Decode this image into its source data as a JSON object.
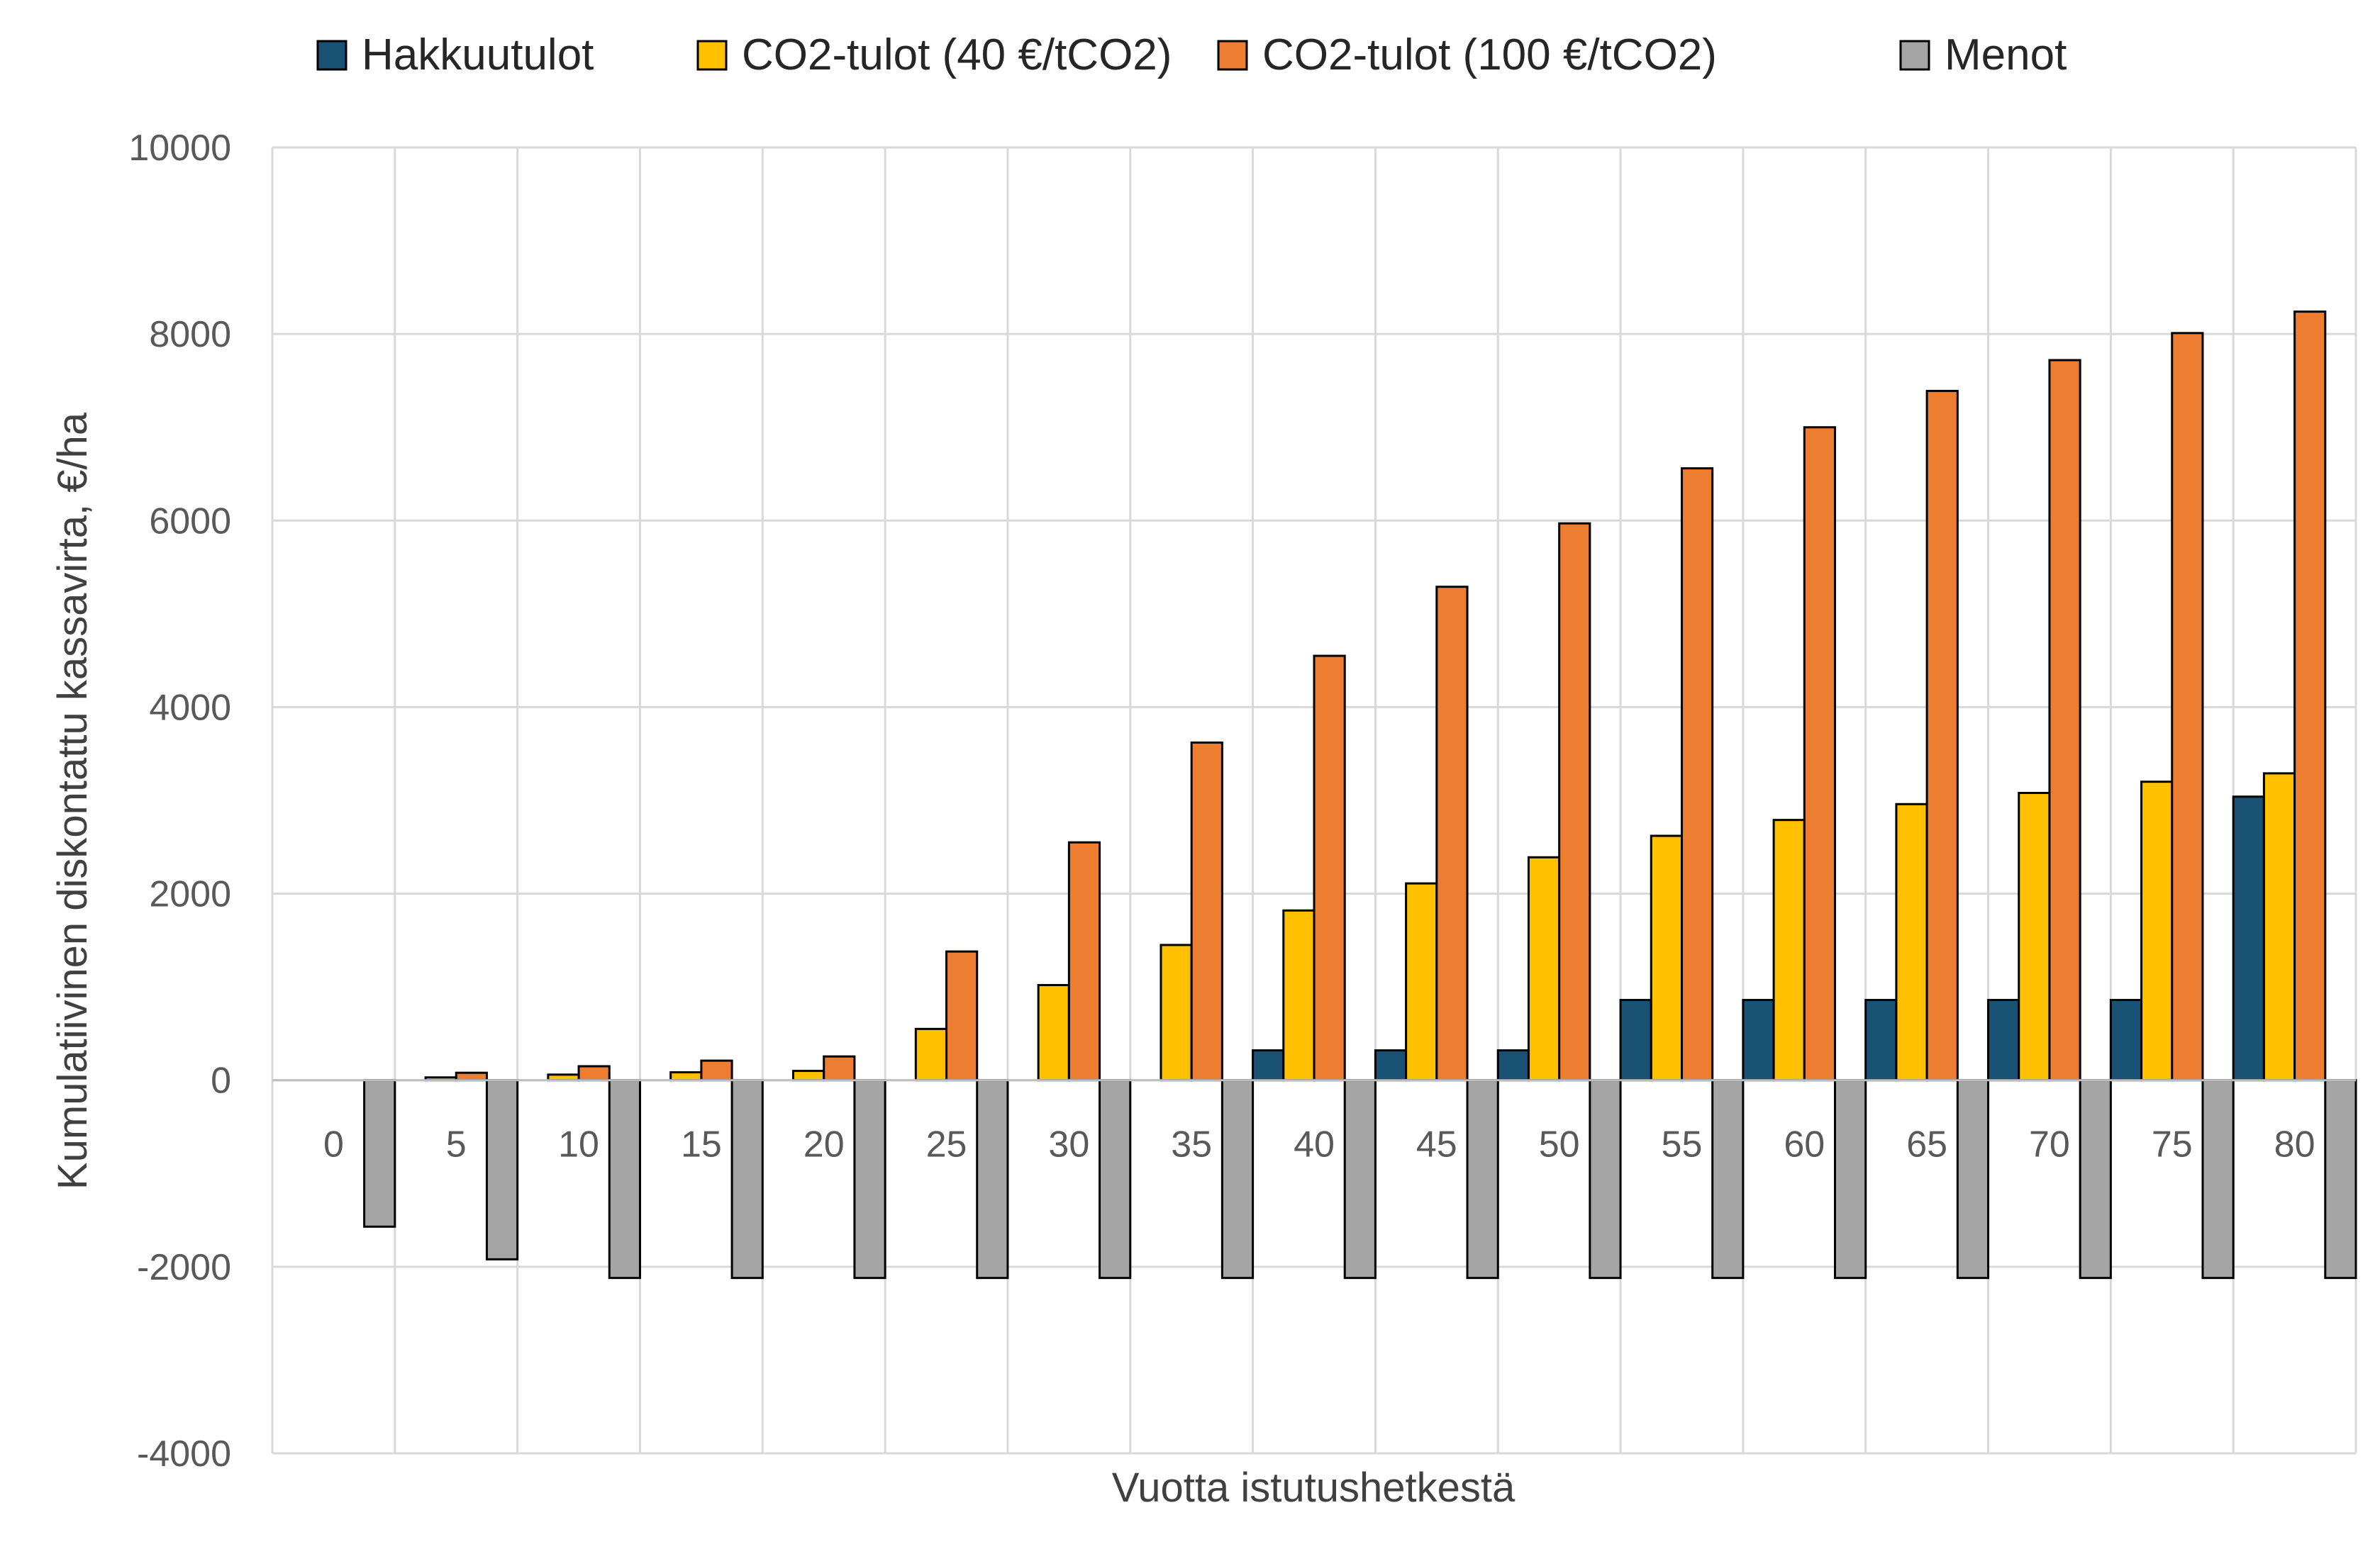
{
  "chart_data": {
    "type": "bar",
    "title": "",
    "xlabel": "Vuotta istutushetkestä",
    "ylabel": "Kumulatiivinen diskontattu kassavirta, €/ha",
    "ylim": [
      -4000,
      10000
    ],
    "yticks": [
      -4000,
      -2000,
      0,
      2000,
      4000,
      6000,
      8000,
      10000
    ],
    "grid": true,
    "legend_position": "top",
    "categories": [
      "0",
      "5",
      "10",
      "15",
      "20",
      "25",
      "30",
      "35",
      "40",
      "45",
      "50",
      "55",
      "60",
      "65",
      "70",
      "75",
      "80"
    ],
    "series": [
      {
        "name": "Hakkuutulot",
        "color": "#1a5276",
        "values": [
          0,
          0,
          0,
          0,
          0,
          0,
          0,
          0,
          320,
          320,
          320,
          860,
          860,
          860,
          860,
          860,
          3040
        ]
      },
      {
        "name": "CO2-tulot (40 €/tCO2)",
        "color": "#ffc000",
        "values": [
          0,
          30,
          60,
          85,
          100,
          550,
          1020,
          1450,
          1820,
          2110,
          2390,
          2620,
          2790,
          2960,
          3080,
          3200,
          3290
        ]
      },
      {
        "name": "CO2-tulot (100 €/tCO2)",
        "color": "#ed7d31",
        "values": [
          0,
          80,
          150,
          210,
          255,
          1380,
          2550,
          3620,
          4550,
          5290,
          5970,
          6560,
          7000,
          7390,
          7720,
          8010,
          8240
        ]
      },
      {
        "name": "Menot",
        "color": "#a5a5a5",
        "values": [
          -1570,
          -1920,
          -2120,
          -2120,
          -2120,
          -2120,
          -2120,
          -2120,
          -2120,
          -2120,
          -2120,
          -2120,
          -2120,
          -2120,
          -2120,
          -2120,
          -2120
        ]
      }
    ]
  }
}
